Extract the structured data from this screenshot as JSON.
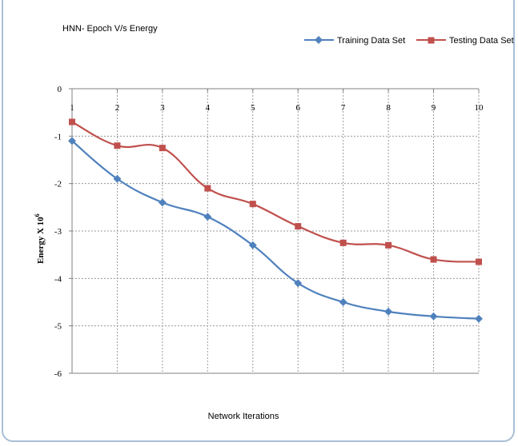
{
  "chart_data": {
    "type": "line",
    "title": "HNN- Epoch V/s Energy",
    "xlabel": "Network Iterations",
    "ylabel": "Energy X 10",
    "ylabel_superscript": "6",
    "x": [
      1,
      2,
      3,
      4,
      5,
      6,
      7,
      8,
      9,
      10
    ],
    "x_ticks": [
      "1",
      "2",
      "3",
      "4",
      "5",
      "6",
      "7",
      "8",
      "9",
      "10"
    ],
    "y_ticks": [
      "0",
      "-1",
      "-2",
      "-3",
      "-4",
      "-5",
      "-6"
    ],
    "ylim": [
      -6,
      0
    ],
    "xlim": [
      1,
      10
    ],
    "x_axis_position": "top",
    "grid": true,
    "legend_position": "top-right",
    "series": [
      {
        "name": "Training Data Set",
        "color": "#4f81bd",
        "marker": "diamond",
        "values": [
          -1.1,
          -1.9,
          -2.4,
          -2.7,
          -3.3,
          -4.1,
          -4.5,
          -4.7,
          -4.8,
          -4.85
        ]
      },
      {
        "name": "Testing Data Set",
        "color": "#c0504d",
        "marker": "square",
        "values": [
          -0.7,
          -1.2,
          -1.25,
          -2.1,
          -2.43,
          -2.9,
          -3.25,
          -3.3,
          -3.6,
          -3.65
        ]
      }
    ]
  }
}
